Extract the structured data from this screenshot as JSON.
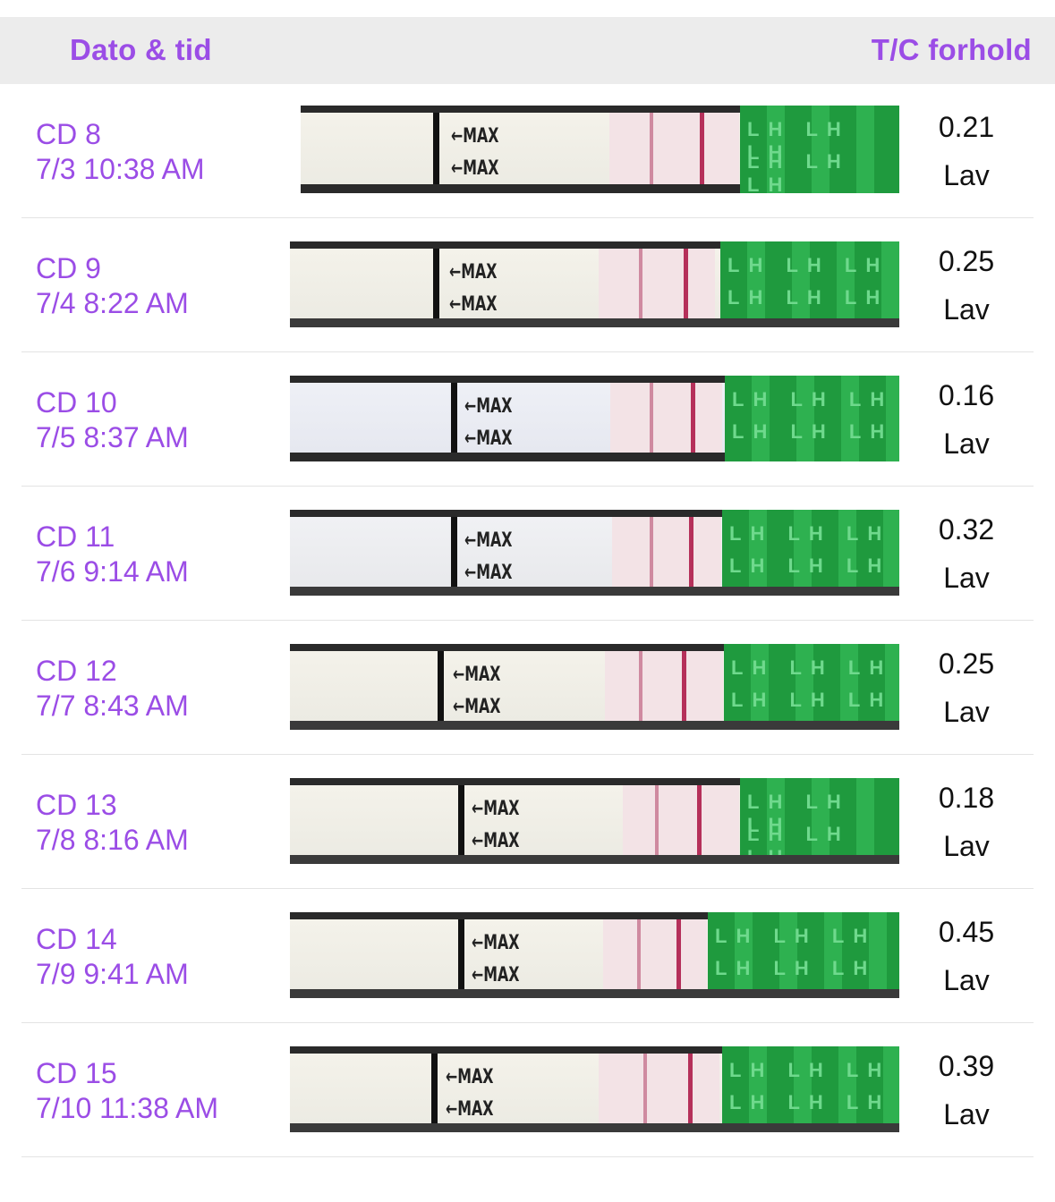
{
  "header": {
    "left_label": "Dato & tid",
    "right_label": "T/C forhold"
  },
  "strip_labels": {
    "max": "←MAX",
    "lh": "LH LH LH"
  },
  "colors": {
    "accent": "#9b4de6",
    "header_bg": "#ececec",
    "test_line": "#b5305a",
    "lh_green": "#1f9a3e"
  },
  "rows": [
    {
      "cd": "CD 8",
      "datetime": "7/3 10:38 AM",
      "ratio": "0.21",
      "level": "Lav"
    },
    {
      "cd": "CD 9",
      "datetime": "7/4 8:22 AM",
      "ratio": "0.25",
      "level": "Lav"
    },
    {
      "cd": "CD 10",
      "datetime": "7/5 8:37 AM",
      "ratio": "0.16",
      "level": "Lav"
    },
    {
      "cd": "CD 11",
      "datetime": "7/6 9:14 AM",
      "ratio": "0.32",
      "level": "Lav"
    },
    {
      "cd": "CD 12",
      "datetime": "7/7 8:43 AM",
      "ratio": "0.25",
      "level": "Lav"
    },
    {
      "cd": "CD 13",
      "datetime": "7/8 8:16 AM",
      "ratio": "0.18",
      "level": "Lav"
    },
    {
      "cd": "CD 14",
      "datetime": "7/9 9:41 AM",
      "ratio": "0.45",
      "level": "Lav"
    },
    {
      "cd": "CD 15",
      "datetime": "7/10 11:38 AM",
      "ratio": "0.39",
      "level": "Lav"
    }
  ]
}
